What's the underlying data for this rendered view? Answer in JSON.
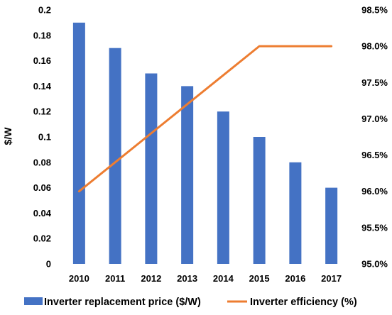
{
  "chart_data": {
    "type": "bar",
    "categories": [
      "2010",
      "2011",
      "2012",
      "2013",
      "2014",
      "2015",
      "2016",
      "2017"
    ],
    "series": [
      {
        "name": "Inverter replacement price ($/W)",
        "type": "bar",
        "axis": "left",
        "color": "#4472c4",
        "values": [
          0.19,
          0.17,
          0.15,
          0.14,
          0.12,
          0.1,
          0.08,
          0.06
        ]
      },
      {
        "name": "Inverter efficiency (%)",
        "type": "line",
        "axis": "right",
        "color": "#ed7d31",
        "values": [
          96.0,
          96.4,
          96.8,
          97.2,
          97.6,
          98.0,
          98.0,
          98.0
        ]
      }
    ],
    "title": "",
    "xlabel": "",
    "ylabel": "$/W",
    "y2label": "",
    "ylim": [
      0,
      0.2
    ],
    "y2lim": [
      95.0,
      98.5
    ],
    "yticks": [
      "0",
      "0.02",
      "0.04",
      "0.06",
      "0.08",
      "0.1",
      "0.12",
      "0.14",
      "0.16",
      "0.18",
      "0.2"
    ],
    "y2ticks": [
      "95.0%",
      "95.5%",
      "96.0%",
      "96.5%",
      "97.0%",
      "97.5%",
      "98.0%",
      "98.5%"
    ],
    "grid": false,
    "legend_position": "bottom"
  }
}
